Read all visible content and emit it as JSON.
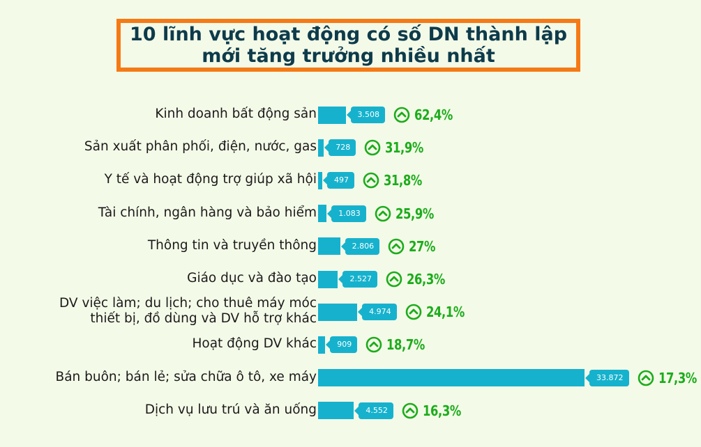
{
  "title": {
    "line1": "10 lĩnh vực hoạt động có số DN thành lập",
    "line2": "mới tăng trưởng nhiều nhất"
  },
  "chart_data": {
    "type": "bar",
    "orientation": "horizontal",
    "title": "10 lĩnh vực hoạt động có số DN thành lập mới tăng trưởng nhiều nhất",
    "categories": [
      [
        "Kinh doanh bất động sản"
      ],
      [
        "Sản xuất phân phối, điện, nước, gas"
      ],
      [
        "Y tế và hoạt động trợ giúp xã hội"
      ],
      [
        "Tài chính, ngân hàng và bảo hiểm"
      ],
      [
        "Thông tin và truyền thông"
      ],
      [
        "Giáo dục và đào tạo"
      ],
      [
        "DV việc làm; du lịch; cho thuê máy móc",
        "thiết bị, đồ dùng và DV hỗ trợ khác"
      ],
      [
        "Hoạt động DV khác"
      ],
      [
        "Bán buôn; bán lẻ; sửa chữa ô tô, xe máy"
      ],
      [
        "Dịch vụ lưu trú và ăn uống"
      ]
    ],
    "values": [
      3508,
      728,
      497,
      1083,
      2806,
      2527,
      4974,
      909,
      33872,
      4552
    ],
    "value_labels": [
      "3.508",
      "728",
      "497",
      "1.083",
      "2.806",
      "2.527",
      "4.974",
      "909",
      "33.872",
      "4.552"
    ],
    "growth_labels": [
      "62,4%",
      "31,9%",
      "31,8%",
      "25,9%",
      "27%",
      "26,3%",
      "24,1%",
      "18,7%",
      "17,3%",
      "16,3%"
    ],
    "growth_values": [
      62.4,
      31.9,
      31.8,
      25.9,
      27,
      26.3,
      24.1,
      18.7,
      17.3,
      16.3
    ],
    "xlim": [
      0,
      33872
    ],
    "grid": false,
    "colors": {
      "bar": "#16b2cd",
      "growth": "#1bac1b",
      "title_border": "#f57a16",
      "title_text": "#0d3b4b"
    },
    "icon": "up-arrow-circle-icon"
  }
}
